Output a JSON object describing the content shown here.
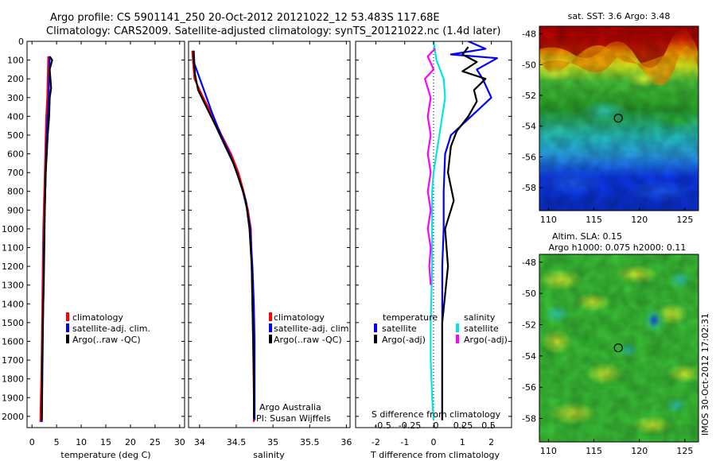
{
  "header": {
    "line1": "Argo profile: CS 5901141_250 20-Oct-2012 20121022_12 53.483S 117.68E",
    "line2": "Climatology: CARS2009. Satellite-adjusted climatology: synTS_20121022.nc (1.4d later)"
  },
  "colors": {
    "climatology": "#ff0000",
    "satellite": "#0000ff",
    "argo": "#000000",
    "salinity_satellite": "#00e5e5",
    "salinity_argo": "#ff00ff"
  },
  "chart_data": [
    {
      "type": "line",
      "xlabel": "temperature (deg C)",
      "ylabel": "",
      "xlim": [
        -1,
        31
      ],
      "ylim": [
        2060,
        0
      ],
      "xticks": [
        0,
        5,
        10,
        15,
        20,
        25,
        30
      ],
      "yticks": [
        0,
        100,
        200,
        300,
        400,
        500,
        600,
        700,
        800,
        900,
        1000,
        1100,
        1200,
        1300,
        1400,
        1500,
        1600,
        1700,
        1800,
        1900,
        2000
      ],
      "series": [
        {
          "name": "climatology",
          "color": "#ff0000",
          "x": [
            3.3,
            3.2,
            3.1,
            2.9,
            2.8,
            2.7,
            2.6,
            2.5,
            2.4,
            2.3,
            2.2,
            2.1,
            2.0,
            1.9,
            1.8,
            1.7
          ],
          "y": [
            80,
            200,
            300,
            400,
            500,
            600,
            700,
            800,
            900,
            1000,
            1200,
            1400,
            1600,
            1800,
            1900,
            2030
          ]
        },
        {
          "name": "satellite-adj. clim.",
          "color": "#0000ff",
          "x": [
            3.6,
            3.5,
            3.4,
            3.2,
            3.0,
            2.9,
            2.8,
            2.7,
            2.6,
            2.5,
            2.4,
            2.3,
            2.2,
            2.1,
            2.0
          ],
          "y": [
            80,
            200,
            300,
            400,
            500,
            600,
            700,
            800,
            900,
            1000,
            1200,
            1400,
            1600,
            1800,
            2030
          ]
        },
        {
          "name": "Argo(..raw -QC)",
          "color": "#000000",
          "x": [
            3.6,
            4.1,
            3.6,
            3.9,
            3.6,
            3.5,
            3.2,
            3.0,
            2.8,
            2.6,
            2.5,
            2.4,
            2.2,
            2.1,
            2.0
          ],
          "y": [
            80,
            100,
            150,
            250,
            300,
            400,
            500,
            600,
            700,
            900,
            1100,
            1300,
            1500,
            1700,
            2020
          ]
        }
      ],
      "legend": [
        "climatology",
        "satellite-adj. clim.",
        "Argo(..raw -QC)"
      ]
    },
    {
      "type": "line",
      "xlabel": "salinity",
      "ylabel": "",
      "xlim": [
        33.85,
        36.05
      ],
      "ylim": [
        2060,
        0
      ],
      "xticks": [
        34,
        34.5,
        35,
        35.5,
        36
      ],
      "series": [
        {
          "name": "climatology",
          "color": "#ff0000",
          "x": [
            33.9,
            33.93,
            34.05,
            34.18,
            34.3,
            34.43,
            34.53,
            34.6,
            34.66,
            34.7,
            34.71,
            34.72,
            34.73,
            34.735,
            34.74,
            34.74
          ],
          "y": [
            50,
            200,
            300,
            400,
            500,
            600,
            700,
            800,
            900,
            1000,
            1200,
            1400,
            1600,
            1800,
            1900,
            2030
          ]
        },
        {
          "name": "satellite-adj. clim.",
          "color": "#0000ff",
          "x": [
            33.92,
            33.93,
            34.05,
            34.17,
            34.29,
            34.41,
            34.51,
            34.59,
            34.65,
            34.69,
            34.72,
            34.74,
            34.75,
            34.75,
            34.75
          ],
          "y": [
            50,
            120,
            250,
            380,
            500,
            600,
            700,
            800,
            900,
            1000,
            1200,
            1400,
            1600,
            1800,
            2020
          ]
        },
        {
          "name": "Argo(..raw -QC)",
          "color": "#000000",
          "x": [
            33.92,
            33.92,
            33.94,
            33.98,
            34.08,
            34.22,
            34.35,
            34.46,
            34.55,
            34.63,
            34.68,
            34.71,
            34.72,
            34.73,
            34.74,
            34.74
          ],
          "y": [
            50,
            100,
            180,
            260,
            340,
            450,
            560,
            650,
            750,
            850,
            1000,
            1200,
            1400,
            1600,
            1800,
            2010
          ]
        }
      ],
      "legend": [
        "climatology",
        "satellite-adj. clim.",
        "Argo(..raw -QC)"
      ],
      "annotation": [
        "Argo Australia",
        "PI: Susan Wijffels"
      ]
    },
    {
      "type": "line",
      "xlabel": "T difference from climatology",
      "xlabel_top": "S difference from climatology",
      "ylabel": "",
      "xlim": [
        -2.7,
        2.7
      ],
      "ylim": [
        2060,
        0
      ],
      "xticks": [
        -2,
        -1,
        0,
        1,
        2
      ],
      "xticks_top": [
        "-0.5",
        "-0.25",
        "0",
        "0.25",
        "0.5"
      ],
      "series": [
        {
          "name": "temperature satellite",
          "color": "#0000ff",
          "x": [
            1.2,
            1.8,
            0.6,
            2.2,
            1.5,
            1.7,
            2.0,
            1.3,
            0.6,
            0.4,
            0.35,
            0.35,
            0.3,
            0.3,
            0.3,
            0.3
          ],
          "y": [
            0,
            40,
            70,
            90,
            150,
            200,
            300,
            400,
            500,
            600,
            800,
            1000,
            1200,
            1500,
            1800,
            2020
          ]
        },
        {
          "name": "temperature Argo(-adj)",
          "color": "#000000",
          "x": [
            1.2,
            1.0,
            1.5,
            1.0,
            1.8,
            1.4,
            1.5,
            1.2,
            0.8,
            0.6,
            0.5,
            0.7,
            0.4,
            0.5,
            0.3,
            0.3
          ],
          "y": [
            30,
            70,
            110,
            160,
            200,
            260,
            320,
            400,
            480,
            560,
            700,
            850,
            1000,
            1200,
            1500,
            2020
          ]
        },
        {
          "name": "salinity satellite",
          "color": "#00e5e5",
          "x": [
            0.0,
            0.1,
            0.35,
            0.4,
            0.3,
            0.2,
            0.1,
            0.0,
            -0.05,
            -0.05,
            -0.05,
            -0.1,
            -0.1,
            -0.05,
            0.0
          ],
          "y": [
            0,
            100,
            200,
            300,
            400,
            500,
            600,
            700,
            800,
            1000,
            1200,
            1500,
            1700,
            1900,
            2020
          ]
        },
        {
          "name": "salinity Argo(-adj)",
          "color": "#ff00ff",
          "x": [
            0.05,
            -0.2,
            0.0,
            -0.3,
            -0.1,
            -0.2,
            -0.1,
            -0.2,
            -0.1,
            -0.2,
            -0.1,
            -0.2,
            -0.1,
            -0.15,
            -0.1
          ],
          "y": [
            40,
            80,
            150,
            200,
            300,
            400,
            500,
            600,
            700,
            800,
            900,
            1000,
            1100,
            1200,
            1300
          ]
        }
      ],
      "legend_groups": {
        "temperature": [
          "satellite",
          "Argo(-adj)"
        ],
        "salinity": [
          "satellite",
          "Argo(-adj)"
        ]
      }
    },
    {
      "type": "heatmap",
      "title": "sat. SST: 3.6  Argo: 3.48",
      "xlim": [
        109,
        126.5
      ],
      "ylim": [
        -59.5,
        -47.5
      ],
      "xticks": [
        110,
        115,
        120,
        125
      ],
      "yticks": [
        -48,
        -50,
        -52,
        -54,
        -56,
        -58
      ],
      "marker": {
        "lon": 117.68,
        "lat": -53.48
      }
    },
    {
      "type": "heatmap",
      "title": "Altim. SLA: 0.15",
      "subtitle": "Argo h1000: 0.075 h2000: 0.11",
      "xlim": [
        109,
        126.5
      ],
      "ylim": [
        -59.5,
        -47.5
      ],
      "xticks": [
        110,
        115,
        120,
        125
      ],
      "yticks": [
        -48,
        -50,
        -52,
        -54,
        -56,
        -58
      ],
      "marker": {
        "lon": 117.68,
        "lat": -53.48
      },
      "side_label": "IMOS 30-Oct-2012 17:02:31"
    }
  ]
}
